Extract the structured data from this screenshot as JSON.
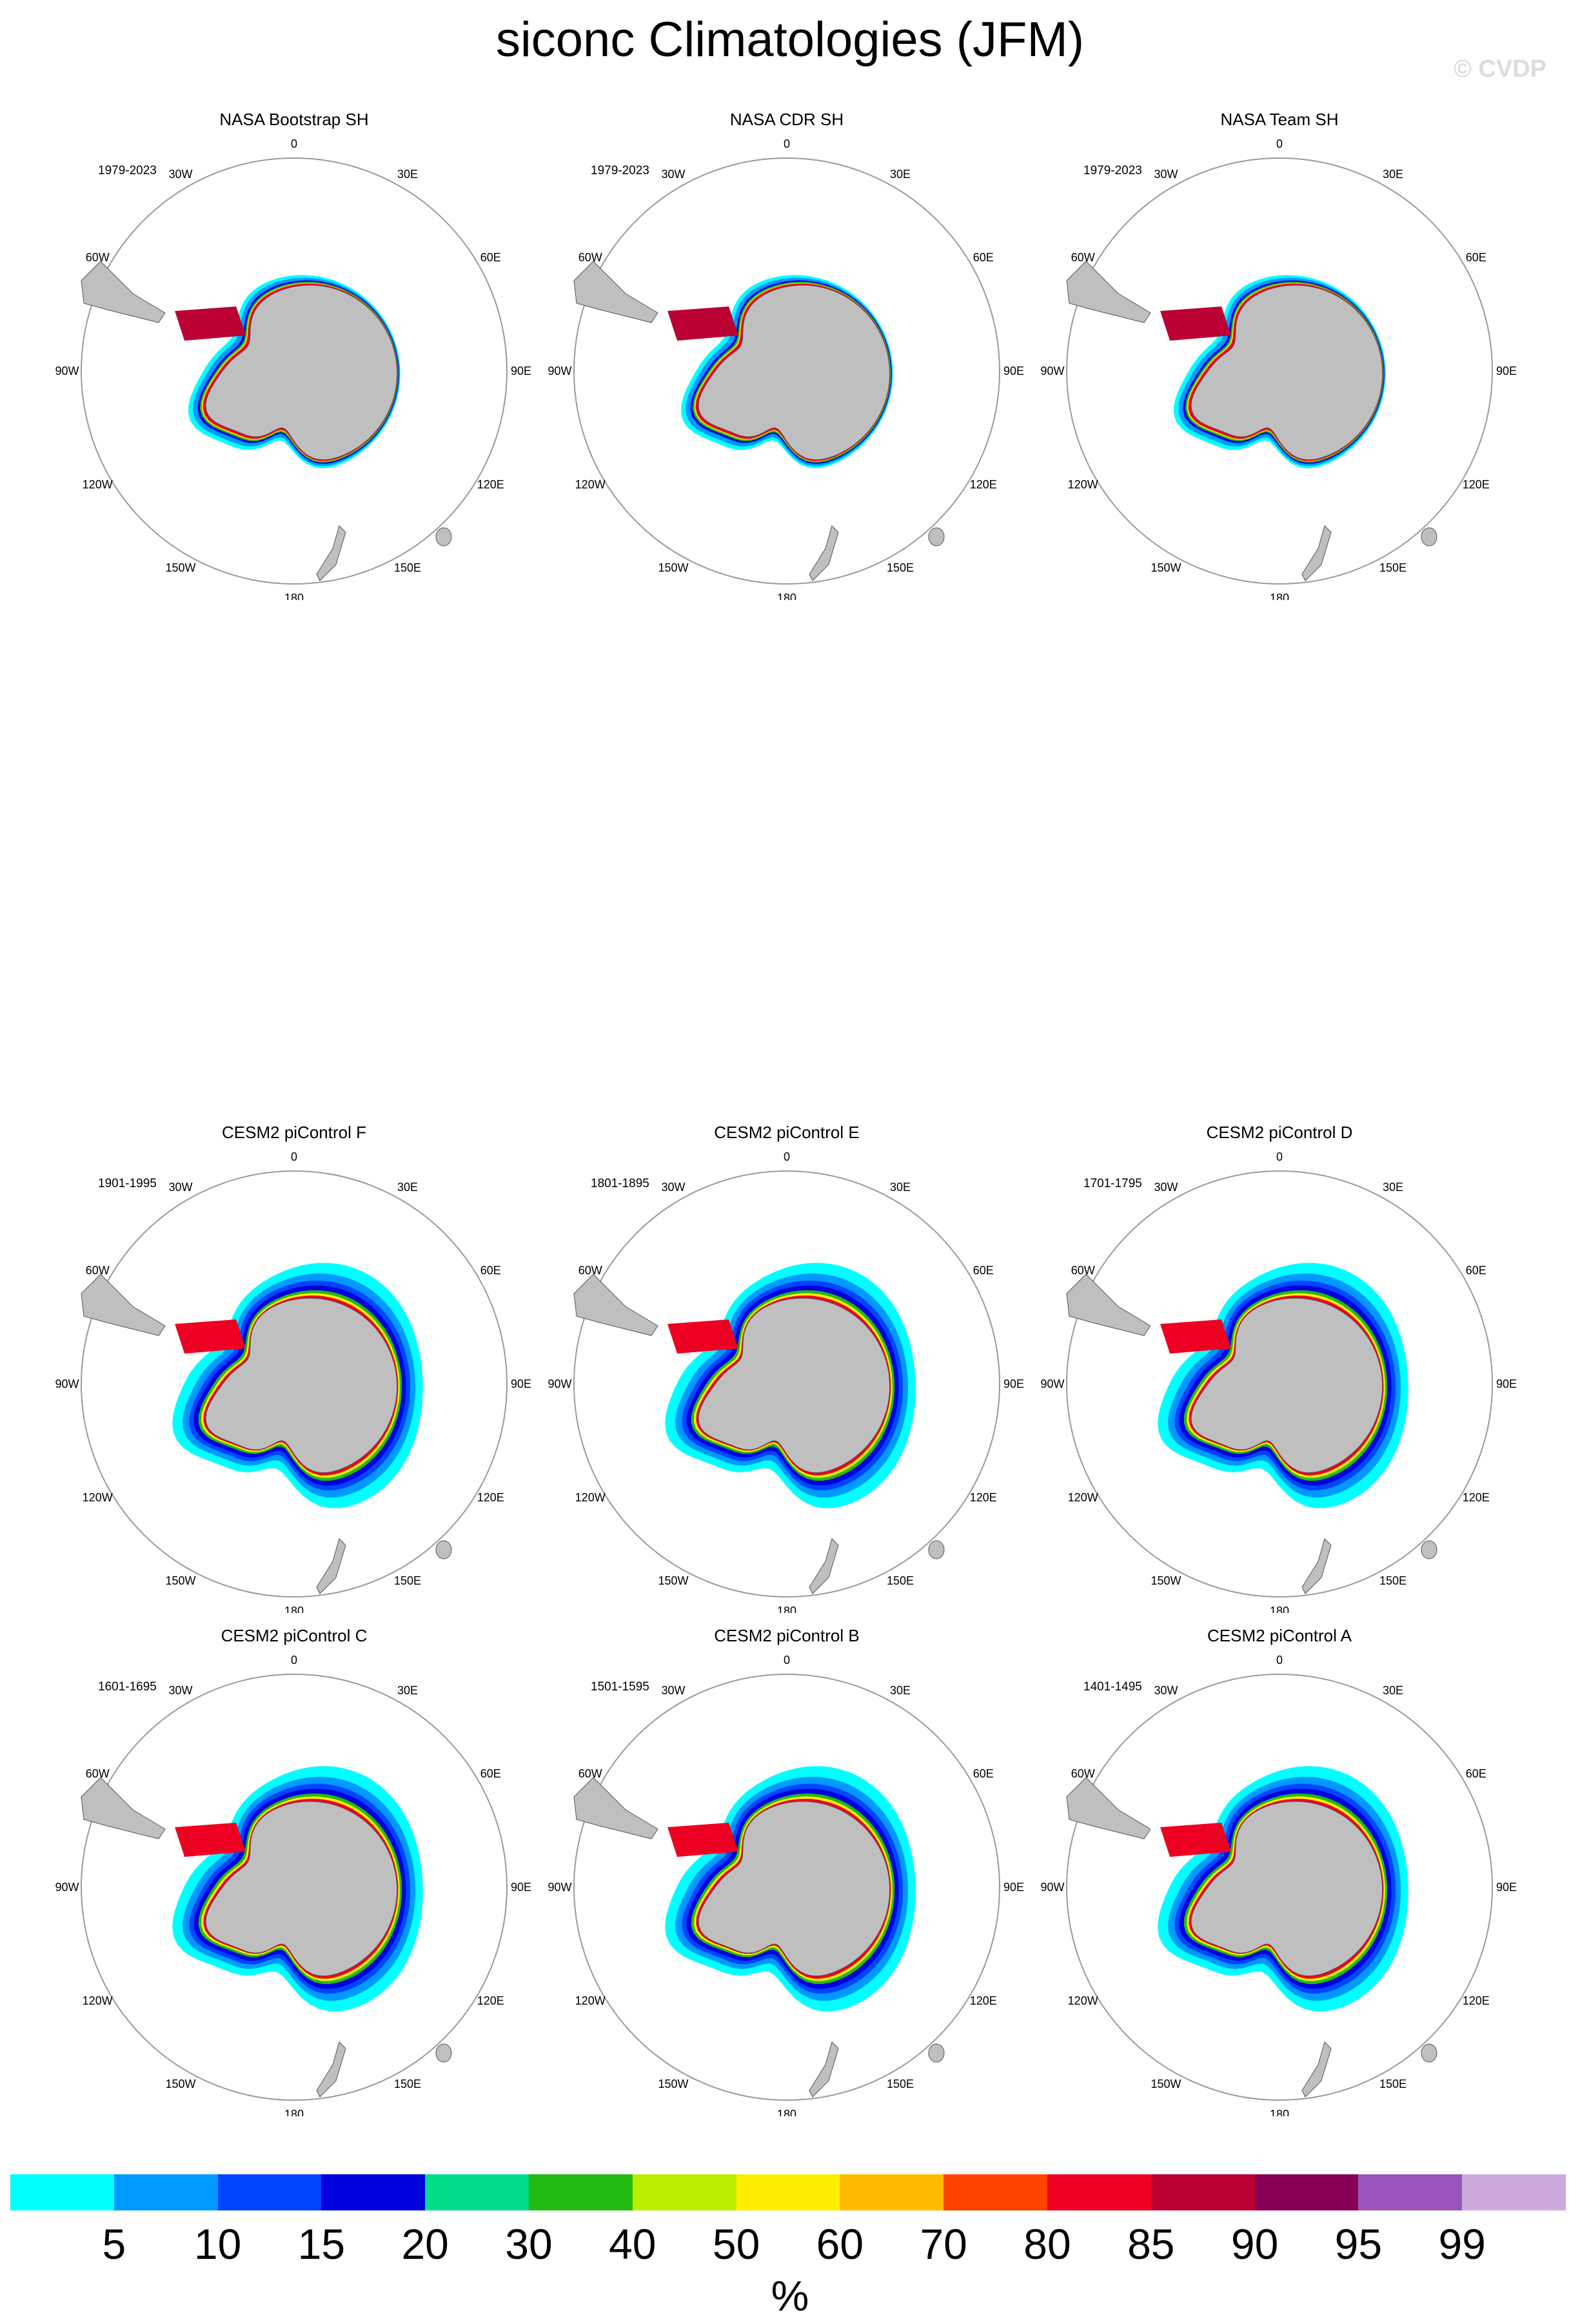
{
  "title": "siconc Climatologies (JFM)",
  "watermark": "© CVDP",
  "map_labels": {
    "lon_0": "0",
    "lon_30E": "30E",
    "lon_60E": "60E",
    "lon_90E": "90E",
    "lon_120E": "120E",
    "lon_150E": "150E",
    "lon_180": "180",
    "lon_150W": "150W",
    "lon_120W": "120W",
    "lon_90W": "90W",
    "lon_60W": "60W",
    "lon_30W": "30W"
  },
  "panels": [
    {
      "title": "NASA Bootstrap SH",
      "period": "1979-2023",
      "kind": "obs"
    },
    {
      "title": "NASA CDR SH",
      "period": "1979-2023",
      "kind": "obs"
    },
    {
      "title": "NASA Team SH",
      "period": "1979-2023",
      "kind": "obs"
    },
    {
      "title": "CESM2 piControl F",
      "period": "1901-1995",
      "kind": "model"
    },
    {
      "title": "CESM2 piControl E",
      "period": "1801-1895",
      "kind": "model"
    },
    {
      "title": "CESM2 piControl D",
      "period": "1701-1795",
      "kind": "model"
    },
    {
      "title": "CESM2 piControl C",
      "period": "1601-1695",
      "kind": "model"
    },
    {
      "title": "CESM2 piControl B",
      "period": "1501-1595",
      "kind": "model"
    },
    {
      "title": "CESM2 piControl A",
      "period": "1401-1495",
      "kind": "model"
    }
  ],
  "colorbar": {
    "colors": [
      "#00ffff",
      "#0099ff",
      "#0044ff",
      "#0000dd",
      "#00dd88",
      "#22bb11",
      "#bbee00",
      "#ffee00",
      "#ffbb00",
      "#ff4400",
      "#ee0022",
      "#bb0033",
      "#880055",
      "#9955bb",
      "#ccaadd"
    ],
    "tick_labels": [
      "5",
      "10",
      "15",
      "20",
      "30",
      "40",
      "50",
      "60",
      "70",
      "80",
      "85",
      "90",
      "95",
      "99"
    ],
    "units": "%"
  },
  "colors": {
    "land": "#bfbfbf",
    "circle": "#9a9a9a"
  }
}
